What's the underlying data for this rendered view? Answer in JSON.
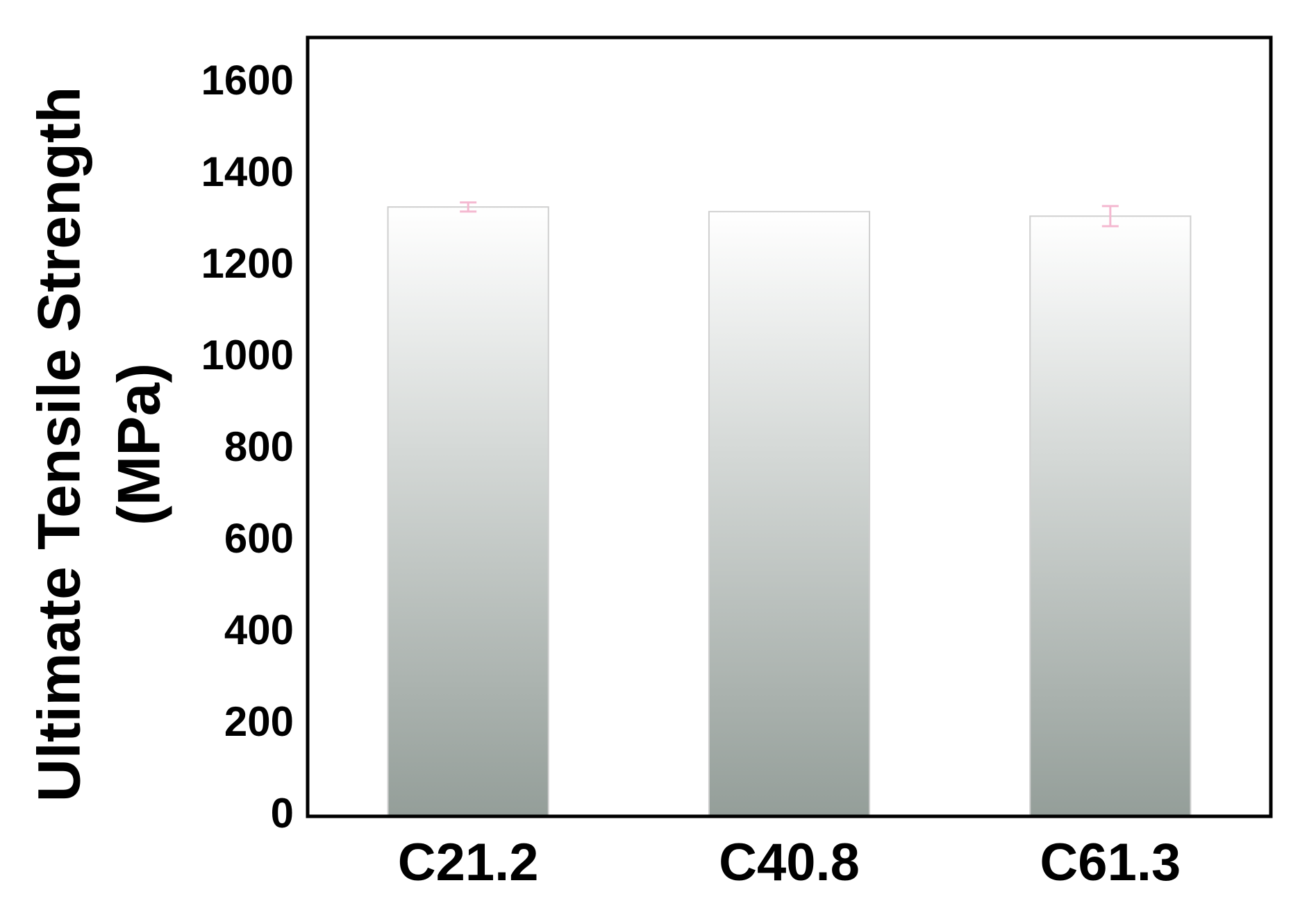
{
  "chart_data": {
    "type": "bar",
    "y_label": [
      "Ultimate Tensile Strength",
      "(MPa)"
    ],
    "categories": [
      "C21.2",
      "C40.8",
      "C61.3"
    ],
    "values": [
      1330,
      1320,
      1310
    ],
    "errors": [
      10,
      null,
      22
    ],
    "color": "#949e99",
    "error_color": "#f4b8d0",
    "ylim": [
      0,
      1700
    ],
    "yticks": [
      0,
      200,
      400,
      600,
      800,
      1000,
      1200,
      1400,
      1600
    ],
    "grid": false
  }
}
